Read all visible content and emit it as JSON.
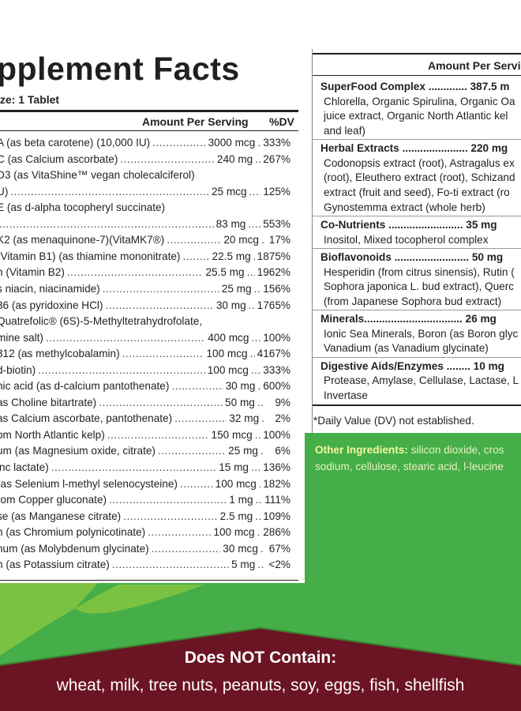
{
  "colors": {
    "green": "#45ae48",
    "light_green": "#7cc242",
    "maroon": "#6b1424",
    "text": "#231f20"
  },
  "supplement_facts": {
    "title": "pplement Facts",
    "serving_size": "ize: 1 Tablet",
    "header_amount": "Amount Per Serving",
    "header_dv": "%DV",
    "rows": [
      {
        "name": "A (as beta carotene) (10,000 IU)",
        "amount": "3000 mcg",
        "dv": "333%"
      },
      {
        "name": "C (as Calcium ascorbate)",
        "amount": "240 mg",
        "dv": "267%"
      },
      {
        "name": "D3  (as VitaShine™ vegan cholecalciferol)",
        "amount": "",
        "dv": ""
      },
      {
        "name": "U)",
        "amount": "25 mcg",
        "dv": "125%"
      },
      {
        "name": "E (as d-alpha tocopheryl succinate)",
        "amount": "",
        "dv": ""
      },
      {
        "name": "",
        "amount": "83 mg",
        "dv": "553%"
      },
      {
        "name": "K2 (as menaquinone-7)(VitaMK7®)",
        "amount": "20 mcg",
        "dv": "17%"
      },
      {
        "name": "(Vitamin B1) (as thiamine mononitrate)",
        "amount": "22.5 mg",
        "dv": "1875%"
      },
      {
        "name": "n (Vitamin B2)",
        "amount": "25.5 mg",
        "dv": "1962%"
      },
      {
        "name": "s niacin, niacinamide)",
        "amount": "25 mg",
        "dv": "156%"
      },
      {
        "name": "36 (as pyridoxine HCl)",
        "amount": "30 mg",
        "dv": "1765%"
      },
      {
        "name": " Quatrefolic® (6S)-5-Methyltetrahydrofolate,",
        "amount": "",
        "dv": ""
      },
      {
        "name": "mine salt)",
        "amount": "400 mcg",
        "dv": "100%"
      },
      {
        "name": "312 (as methylcobalamin)",
        "amount": "100 mcg",
        "dv": "4167%"
      },
      {
        "name": " d-biotin)",
        "amount": "100 mcg",
        "dv": "333%"
      },
      {
        "name": "nic acid (as d-calcium pantothenate)",
        "amount": "30 mg",
        "dv": "600%"
      },
      {
        "name": "as Choline bitartrate)",
        "amount": "50 mg",
        "dv": "9%"
      },
      {
        "name": "as Calcium ascorbate, pantothenate)",
        "amount": "32 mg",
        "dv": "2%"
      },
      {
        "name": "om North Atlantic kelp)",
        "amount": "150 mcg",
        "dv": "100%"
      },
      {
        "name": "um (as Magnesium oxide, citrate)",
        "amount": "25 mg",
        "dv": "6%"
      },
      {
        "name": "inc lactate)",
        "amount": "15 mg",
        "dv": "136%"
      },
      {
        "name": " (as Selenium l-methyl selenocysteine)",
        "amount": "100 mcg",
        "dv": "182%"
      },
      {
        "name": "rom Copper gluconate)",
        "amount": "1 mg",
        "dv": "111%"
      },
      {
        "name": "se (as Manganese citrate)",
        "amount": "2.5 mg",
        "dv": "109%"
      },
      {
        "name": "n (as Chromium polynicotinate)",
        "amount": "100 mcg",
        "dv": "286%"
      },
      {
        "name": "num (as Molybdenum glycinate)",
        "amount": "30 mcg",
        "dv": "67%"
      },
      {
        "name": "n (as Potassium citrate)",
        "amount": "5 mg",
        "dv": "<2%"
      }
    ]
  },
  "right_panel": {
    "header_amount": "Amount Per Servi",
    "sections": [
      {
        "head": "SuperFood Complex ............. 387.5 m",
        "lines": [
          "Chlorella, Organic Spirulina, Organic Oa",
          "juice extract, Organic North Atlantic kel",
          "and leaf)"
        ]
      },
      {
        "head": "Herbal Extracts ...................... 220 mg",
        "lines": [
          "Codonopsis extract (root), Astragalus ex",
          "(root), Eleuthero extract (root), Schizand",
          "extract (fruit and seed), Fo-ti extract (ro",
          "Gynostemma extract (whole herb)"
        ]
      },
      {
        "head": "Co-Nutrients ......................... 35 mg",
        "lines": [
          "Inositol, Mixed tocopherol complex"
        ]
      },
      {
        "head": "Bioflavonoids ......................... 50 mg",
        "lines": [
          "Hesperidin (from citrus sinensis), Rutin (",
          "Sophora japonica L. bud extract), Querc",
          "(from Japanese Sophora bud extract)"
        ]
      },
      {
        "head": "Minerals................................. 26 mg",
        "lines": [
          "Ionic Sea Minerals, Boron (as Boron glyc",
          "Vanadium (as Vanadium glycinate)"
        ]
      },
      {
        "head": "Digestive Aids/Enzymes ........ 10 mg",
        "lines": [
          "Protease, Amylase, Cellulase, Lactase, L",
          "Invertase"
        ]
      }
    ],
    "footnote": "*Daily Value (DV) not established."
  },
  "other_ingredients": {
    "label": "Other Ingredients:",
    "line1": " silicon dioxide, cros",
    "line2": "sodium, cellulose, stearic acid, l-leucine"
  },
  "does_not_contain": {
    "title": "Does NOT Contain:",
    "list": "wheat, milk, tree nuts, peanuts, soy, eggs, fish, shellfish"
  }
}
